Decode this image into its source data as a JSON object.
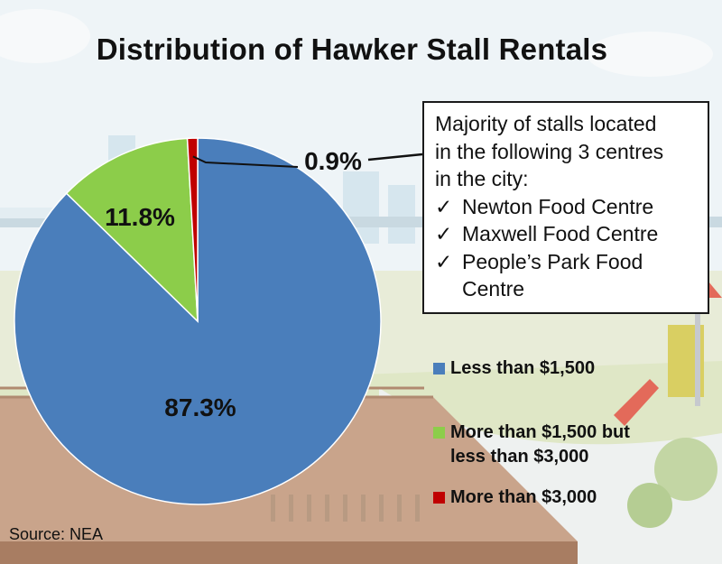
{
  "chart_data": {
    "type": "pie",
    "title": "Distribution of Hawker Stall Rentals",
    "slices": [
      {
        "label": "Less than $1,500",
        "value": 87.3,
        "display": "87.3%",
        "color": "#4a7ebb"
      },
      {
        "label": "More than $1,500 but less than $3,000",
        "value": 11.8,
        "display": "11.8%",
        "color": "#8ccd4a"
      },
      {
        "label": "More than $3,000",
        "value": 0.9,
        "display": "0.9%",
        "color": "#c00000"
      }
    ],
    "legend_position": "right"
  },
  "callout": {
    "heading_lines": [
      "Majority of stalls located",
      "in the following 3 centres",
      "in the city:"
    ],
    "check_mark": "✓",
    "items": [
      "Newton Food Centre",
      "Maxwell Food Centre",
      "People’s Park Food"
    ],
    "item_continuation": "Centre"
  },
  "legend": [
    {
      "lines": [
        "Less than $1,500"
      ],
      "color": "#4a7ebb"
    },
    {
      "lines": [
        "More than $1,500 but",
        "less than $3,000"
      ],
      "color": "#8ccd4a"
    },
    {
      "lines": [
        "More than $3,000"
      ],
      "color": "#c00000"
    }
  ],
  "source": "Source: NEA"
}
